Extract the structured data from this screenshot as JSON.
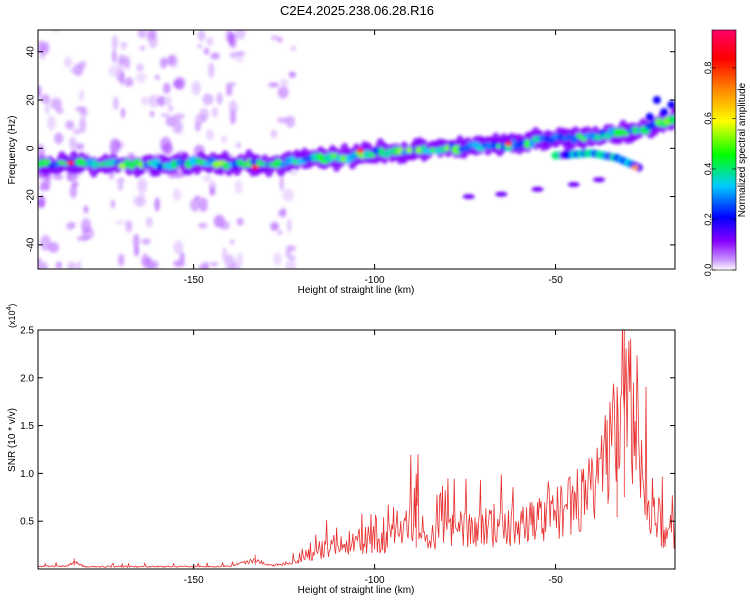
{
  "title": "C2E4.2025.238.06.28.R16",
  "chart_data": [
    {
      "type": "heatmap",
      "xlabel": "Height of straight line (km)",
      "ylabel": "Frequency (Hz)",
      "xlim": [
        -193,
        -17
      ],
      "ylim": [
        -50,
        49
      ],
      "x_ticks": [
        -150,
        -100,
        -50
      ],
      "y_ticks": [
        -40,
        -20,
        0,
        20,
        40
      ],
      "colorbar": {
        "label": "Normalized spectral amplitude",
        "range": [
          0,
          0.95
        ],
        "ticks": [
          0.0,
          0.2,
          0.4,
          0.6,
          0.8
        ],
        "colors": [
          "#ffffff",
          "#cc99ff",
          "#8800ff",
          "#0000ff",
          "#00ccff",
          "#00ff00",
          "#ffff00",
          "#ff8800",
          "#ff0000",
          "#ff0066"
        ]
      },
      "main_band": {
        "x": [
          -193,
          -175,
          -160,
          -145,
          -130,
          -120,
          -110,
          -100,
          -90,
          -80,
          -70,
          -60,
          -50,
          -40,
          -30,
          -25,
          -17
        ],
        "y": [
          -7,
          -6.5,
          -7,
          -6,
          -7,
          -5,
          -4,
          -2,
          -1,
          0,
          1,
          2,
          4,
          5,
          7,
          8,
          12
        ]
      },
      "secondary_band": {
        "x": [
          -50,
          -40,
          -33,
          -30,
          -27
        ],
        "y": [
          -3,
          -2,
          -4,
          -6,
          -8
        ]
      },
      "hotspots": [
        {
          "x": -184,
          "y": -6,
          "v": 0.88
        },
        {
          "x": -133,
          "y": -8,
          "v": 0.85
        },
        {
          "x": -104,
          "y": -1,
          "v": 0.8
        },
        {
          "x": -63,
          "y": 2,
          "v": 0.82
        },
        {
          "x": -28,
          "y": -8,
          "v": 0.7
        }
      ]
    },
    {
      "type": "line",
      "xlabel": "Height of straight line (km)",
      "ylabel": "SNR (10 * v/v)",
      "y_multiplier": "(x10",
      "y_multiplier_exp": "4",
      "y_multiplier_close": ")",
      "xlim": [
        -193,
        -17
      ],
      "ylim": [
        0,
        25000
      ],
      "x_ticks": [
        -150,
        -100,
        -50
      ],
      "y_ticks": [
        5000,
        10000,
        15000,
        20000,
        25000
      ],
      "y_tick_labels": [
        "0.5",
        "1.0",
        "1.5",
        "2.0",
        "2.5"
      ],
      "series": [
        {
          "color": "#e83030",
          "x": [
            -193,
            -185,
            -183,
            -180,
            -160,
            -140,
            -133,
            -131,
            -128,
            -120,
            -110,
            -100,
            -92,
            -88.5,
            -86,
            -80,
            -70,
            -60,
            -55,
            -50,
            -45,
            -40,
            -35,
            -33,
            -31,
            -30,
            -28,
            -25,
            -20,
            -17
          ],
          "y": [
            400,
            500,
            1100,
            400,
            400,
            450,
            1500,
            1000,
            600,
            1400,
            3000,
            3500,
            3800,
            7500,
            3500,
            4500,
            5000,
            4800,
            6000,
            6500,
            7500,
            9000,
            13000,
            18000,
            25000,
            21000,
            14000,
            9000,
            4500,
            4000
          ]
        }
      ]
    }
  ]
}
